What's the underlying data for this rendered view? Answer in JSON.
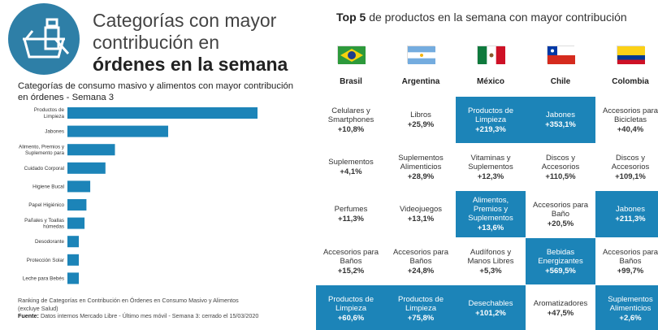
{
  "headline": {
    "line1": "Categorías con mayor",
    "line2": "contribución en",
    "line3": "órdenes en la semana"
  },
  "chart_data": {
    "type": "bar",
    "orientation": "horizontal",
    "title": "Categorías de consumo masivo y alimentos con mayor contribución en órdenes - Semana 3",
    "categories": [
      "Productos de Limpieza",
      "Jabones",
      "Alimento, Premios y Suplemento para",
      "Cuidado Corporal",
      "Higiene Bucal",
      "Papel Higiénico",
      "Pañales y Toallas húmedas",
      "Desodorante",
      "Protección Solar",
      "Leche para Bebés"
    ],
    "category_lines": [
      [
        "Productos de",
        "Limpieza"
      ],
      [
        "Jabones"
      ],
      [
        "Alimento, Premios y",
        "Suplemento para"
      ],
      [
        "Cuidado Corporal"
      ],
      [
        "Higiene Bucal"
      ],
      [
        "Papel Higiénico"
      ],
      [
        "Pañales y Toallas",
        "húmedas"
      ],
      [
        "Desodorante"
      ],
      [
        "Protección Solar"
      ],
      [
        "Leche para Bebés"
      ]
    ],
    "values": [
      100,
      53,
      25,
      20,
      12,
      10,
      9,
      6,
      6,
      6
    ],
    "grid": false,
    "legend": "none",
    "color": "#1c84b8"
  },
  "footnote": {
    "line1": "Ranking de Categorías en Contribución en Órdenes en Consumo Masivo y Alimentos",
    "line2": "(excluye Salud)",
    "source_label": "Fuente:",
    "source_text": "Datos internos Mercado Libre - Último mes móvil - Semana 3: cerrado el 15/03/2020"
  },
  "top5": {
    "title_bold": "Top 5",
    "title_rest": "de productos en la semana con mayor contribución",
    "countries": [
      "Brasil",
      "Argentina",
      "México",
      "Chile",
      "Colombia"
    ],
    "highlight_color": "#1c84b8",
    "rows": [
      [
        {
          "name": "Celulares y Smartphones",
          "value": "+10,8%",
          "hl": false
        },
        {
          "name": "Libros",
          "value": "+25,9%",
          "hl": false
        },
        {
          "name": "Productos de Limpieza",
          "value": "+219,3%",
          "hl": true
        },
        {
          "name": "Jabones",
          "value": "+353,1%",
          "hl": true
        },
        {
          "name": "Accesorios para Bicicletas",
          "value": "+40,4%",
          "hl": false
        }
      ],
      [
        {
          "name": "Suplementos",
          "value": "+4,1%",
          "hl": false
        },
        {
          "name": "Suplementos Alimenticios",
          "value": "+28,9%",
          "hl": false
        },
        {
          "name": "Vitaminas y Suplementos",
          "value": "+12,3%",
          "hl": false
        },
        {
          "name": "Discos y Accesorios",
          "value": "+110,5%",
          "hl": false
        },
        {
          "name": "Discos y Accesorios",
          "value": "+109,1%",
          "hl": false
        }
      ],
      [
        {
          "name": "Perfumes",
          "value": "+11,3%",
          "hl": false
        },
        {
          "name": "Videojuegos",
          "value": "+13,1%",
          "hl": false
        },
        {
          "name": "Alimentos, Premios y Suplementos",
          "value": "+13,6%",
          "hl": true
        },
        {
          "name": "Accesorios para Baño",
          "value": "+20,5%",
          "hl": false
        },
        {
          "name": "Jabones",
          "value": "+211,3%",
          "hl": true
        }
      ],
      [
        {
          "name": "Accesorios para Baños",
          "value": "+15,2%",
          "hl": false
        },
        {
          "name": "Accesorios para Baños",
          "value": "+24,8%",
          "hl": false
        },
        {
          "name": "Audífonos y Manos Libres",
          "value": "+5,3%",
          "hl": false
        },
        {
          "name": "Bebidas Energizantes",
          "value": "+569,5%",
          "hl": true
        },
        {
          "name": "Accesorios para Baños",
          "value": "+99,7%",
          "hl": false
        }
      ],
      [
        {
          "name": "Productos de Limpieza",
          "value": "+60,6%",
          "hl": true
        },
        {
          "name": "Productos de Limpieza",
          "value": "+75,8%",
          "hl": true
        },
        {
          "name": "Desechables",
          "value": "+101,2%",
          "hl": true
        },
        {
          "name": "Aromatizadores",
          "value": "+47,5%",
          "hl": false
        },
        {
          "name": "Suplementos Alimenticios",
          "value": "+2,6%",
          "hl": true
        }
      ]
    ]
  },
  "icons": {
    "logo": "basket-bottle-icon",
    "flags": [
      "brazil-flag-icon",
      "argentina-flag-icon",
      "mexico-flag-icon",
      "chile-flag-icon",
      "colombia-flag-icon"
    ]
  }
}
